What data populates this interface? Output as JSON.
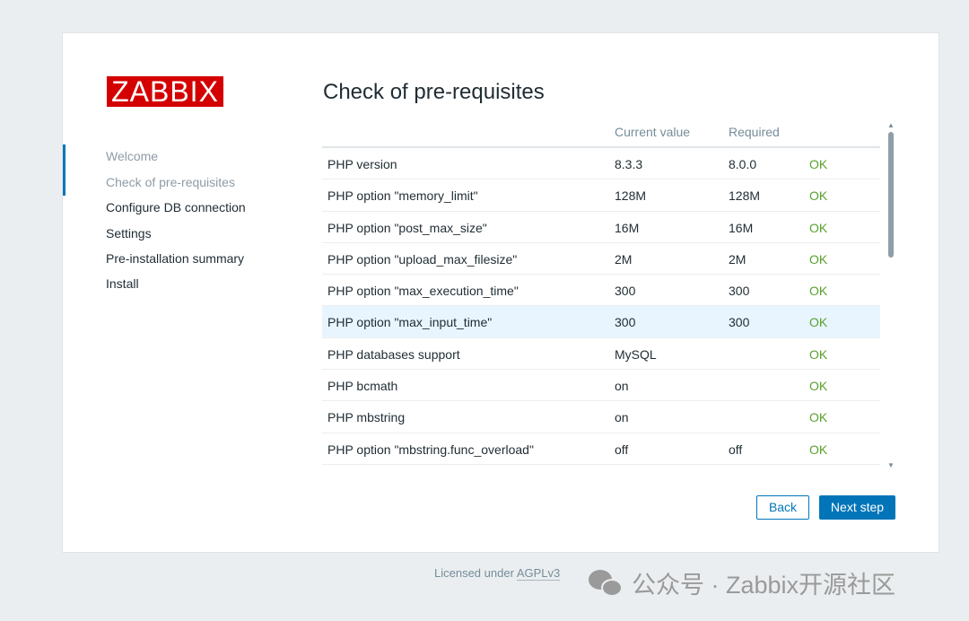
{
  "logo": "ZABBIX",
  "nav": [
    {
      "label": "Welcome",
      "state": "done"
    },
    {
      "label": "Check of pre-requisites",
      "state": "current"
    },
    {
      "label": "Configure DB connection",
      "state": "pending"
    },
    {
      "label": "Settings",
      "state": "pending"
    },
    {
      "label": "Pre-installation summary",
      "state": "pending"
    },
    {
      "label": "Install",
      "state": "pending"
    }
  ],
  "title": "Check of pre-requisites",
  "table": {
    "headers": [
      "",
      "Current value",
      "Required",
      ""
    ],
    "rows": [
      {
        "name": "PHP version",
        "current": "8.3.3",
        "required": "8.0.0",
        "status": "OK"
      },
      {
        "name": "PHP option \"memory_limit\"",
        "current": "128M",
        "required": "128M",
        "status": "OK"
      },
      {
        "name": "PHP option \"post_max_size\"",
        "current": "16M",
        "required": "16M",
        "status": "OK"
      },
      {
        "name": "PHP option \"upload_max_filesize\"",
        "current": "2M",
        "required": "2M",
        "status": "OK"
      },
      {
        "name": "PHP option \"max_execution_time\"",
        "current": "300",
        "required": "300",
        "status": "OK"
      },
      {
        "name": "PHP option \"max_input_time\"",
        "current": "300",
        "required": "300",
        "status": "OK"
      },
      {
        "name": "PHP databases support",
        "current": "MySQL",
        "required": "",
        "status": "OK"
      },
      {
        "name": "PHP bcmath",
        "current": "on",
        "required": "",
        "status": "OK"
      },
      {
        "name": "PHP mbstring",
        "current": "on",
        "required": "",
        "status": "OK"
      },
      {
        "name": "PHP option \"mbstring.func_overload\"",
        "current": "off",
        "required": "off",
        "status": "OK"
      }
    ]
  },
  "buttons": {
    "back": "Back",
    "next": "Next step"
  },
  "footer": {
    "text": "Licensed under",
    "link": "AGPLv3"
  },
  "watermark": "公众号 · Zabbix开源社区",
  "colors": {
    "accent": "#0275b8",
    "ok": "#59a12d",
    "logo": "#d40000"
  }
}
